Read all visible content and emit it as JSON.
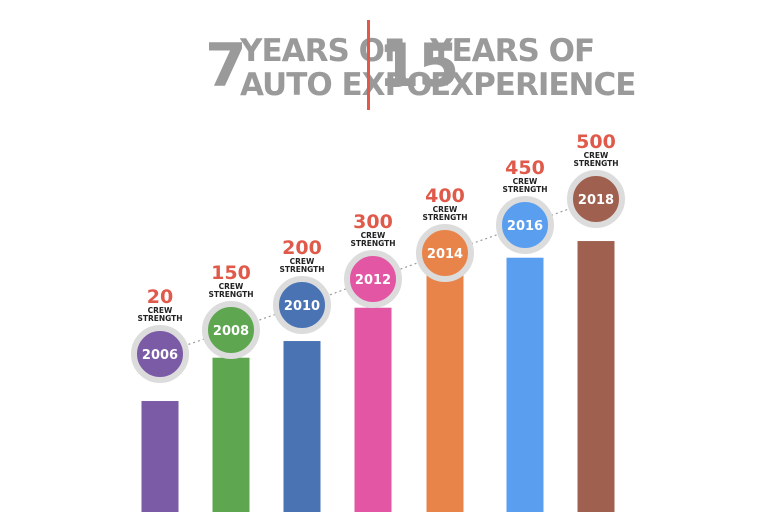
{
  "header": {
    "left_number": "7",
    "left_line1": "YEARS OF",
    "left_line2": "AUTO EXPO",
    "right_number": "15",
    "right_line1": "YEARS OF",
    "right_line2": "EXPERIENCE"
  },
  "colors": {
    "header_gray": "#9a9a9a",
    "divider": "#e05a4b",
    "value_text": "#e05a4b",
    "circle_ring": "#dcdcdc"
  },
  "chart_data": {
    "type": "bar",
    "categories": [
      "2006",
      "2008",
      "2010",
      "2012",
      "2014",
      "2016",
      "2018"
    ],
    "values": [
      20,
      150,
      200,
      300,
      400,
      450,
      500
    ],
    "label_caption": [
      "CREW",
      "STRENGTH"
    ],
    "bar_colors": [
      "#7b5aa6",
      "#5ea650",
      "#4a73b4",
      "#e256a3",
      "#e8844a",
      "#5a9ef0",
      "#a0604f"
    ],
    "title": "",
    "xlabel": "",
    "ylabel": "",
    "grid": false,
    "legend": "none"
  }
}
